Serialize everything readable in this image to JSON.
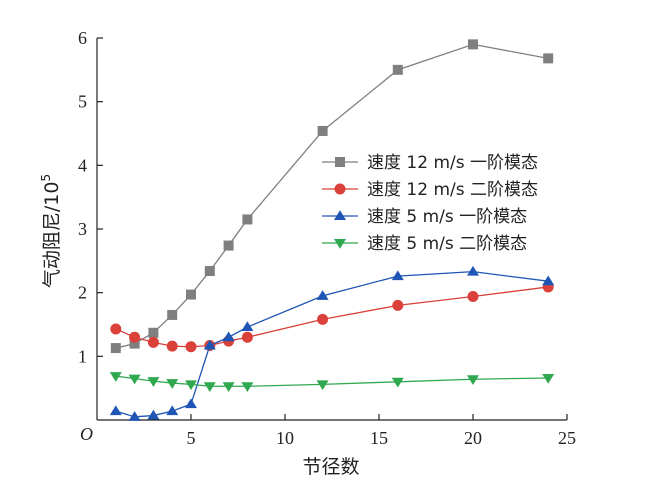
{
  "chart_data": {
    "type": "line",
    "xlabel": "节径数",
    "ylabel_main": "气动阻尼/10",
    "ylabel_sup": "5",
    "origin_label": "O",
    "xlim": [
      0,
      25
    ],
    "ylim": [
      0,
      6
    ],
    "x_ticks": [
      5,
      10,
      15,
      20,
      25
    ],
    "y_ticks": [
      1,
      2,
      3,
      4,
      5,
      6
    ],
    "grid": false,
    "legend_position": "right-center",
    "x": [
      1,
      2,
      3,
      4,
      5,
      6,
      7,
      8,
      12,
      16,
      20,
      24
    ],
    "series": [
      {
        "name": "速度 12 m/s 一阶模态",
        "color": "#7f7f7f",
        "marker": "square",
        "values": [
          1.13,
          1.2,
          1.37,
          1.65,
          1.97,
          2.34,
          2.74,
          3.15,
          4.54,
          5.5,
          5.9,
          5.68
        ]
      },
      {
        "name": "速度 12 m/s 二阶模态",
        "color": "#d9413a",
        "marker": "circle",
        "values": [
          1.43,
          1.3,
          1.22,
          1.16,
          1.15,
          1.17,
          1.24,
          1.3,
          1.58,
          1.8,
          1.94,
          2.09
        ]
      },
      {
        "name": "速度 5 m/s 一阶模态",
        "color": "#1f55b4",
        "marker": "triangle-up",
        "values": [
          0.14,
          0.05,
          0.07,
          0.14,
          0.25,
          1.17,
          1.3,
          1.46,
          1.95,
          2.26,
          2.33,
          2.18
        ]
      },
      {
        "name": "速度 5 m/s 二阶模态",
        "color": "#2fa84f",
        "marker": "triangle-down",
        "values": [
          0.69,
          0.65,
          0.61,
          0.58,
          0.56,
          0.53,
          0.53,
          0.53,
          0.56,
          0.6,
          0.64,
          0.66
        ]
      }
    ]
  }
}
